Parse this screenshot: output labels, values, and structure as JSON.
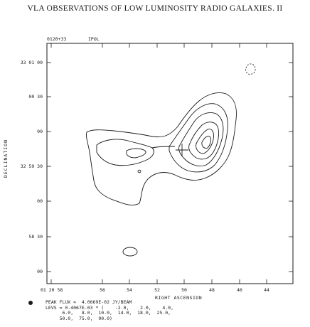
{
  "header": {
    "running_head": "VLA OBSERVATIONS OF LOW LUMINOSITY RADIO GALAXIES. II"
  },
  "map": {
    "source_name": "0120+33",
    "polarization": "IPOL",
    "y_axis_title": "DECLINATION",
    "x_axis_title": "RIGHT ASCENSION",
    "y_ticks": [
      {
        "label": "33 01 00"
      },
      {
        "label": "00 30"
      },
      {
        "label": "00"
      },
      {
        "label": "32 59 30"
      },
      {
        "label": "00"
      },
      {
        "label": "58 30"
      },
      {
        "label": "00"
      }
    ],
    "x_ticks": [
      {
        "label": "01 20 58"
      },
      {
        "label": "56"
      },
      {
        "label": "54"
      },
      {
        "label": "52"
      },
      {
        "label": "50"
      },
      {
        "label": "48"
      },
      {
        "label": "46"
      },
      {
        "label": "44"
      }
    ]
  },
  "footer": {
    "peak_flux": "PEAK FLUX =  4.0669E-02 JY/BEAM",
    "levels_line1": "LEVS = 0.4067E-03 * (    -2.0,    2.0,    4.0,",
    "levels_line2": "      6.0,   8.0,  10.0,  14.0,  18.0,  25.0,",
    "levels_line3": "     50.0,  75.0,  90.0)"
  }
}
